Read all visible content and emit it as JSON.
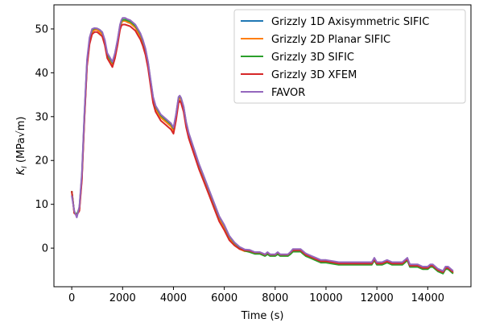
{
  "chart_data": {
    "type": "line",
    "xlabel": "Time (s)",
    "ylabel": "K_I (MPa√m)",
    "xlim": [
      -700,
      15700
    ],
    "ylim": [
      -8.8,
      55.5
    ],
    "xticks": [
      0,
      2000,
      4000,
      6000,
      8000,
      10000,
      12000,
      14000
    ],
    "yticks": [
      0,
      10,
      20,
      30,
      40,
      50
    ],
    "grid": false,
    "legend_position": "top-right",
    "series": [
      {
        "name": "Grizzly 1D Axisymmetric SIFIC",
        "color": "#1f77b4",
        "x": [
          0,
          100,
          200,
          300,
          400,
          500,
          600,
          700,
          800,
          900,
          1000,
          1100,
          1200,
          1300,
          1400,
          1500,
          1600,
          1700,
          1800,
          1900,
          1950,
          2000,
          2100,
          2200,
          2300,
          2400,
          2500,
          2600,
          2700,
          2800,
          2900,
          3000,
          3100,
          3200,
          3300,
          3400,
          3500,
          3600,
          3700,
          3800,
          3900,
          4000,
          4100,
          4200,
          4250,
          4300,
          4350,
          4400,
          4500,
          4600,
          4800,
          5000,
          5200,
          5400,
          5600,
          5800,
          6000,
          6200,
          6400,
          6600,
          6800,
          7000,
          7200,
          7400,
          7600,
          7700,
          7800,
          7900,
          8000,
          8100,
          8200,
          8300,
          8400,
          8500,
          8600,
          8700,
          8800,
          8900,
          9000,
          9100,
          9200,
          9400,
          9600,
          9800,
          10000,
          10500,
          11000,
          11500,
          11800,
          11900,
          12000,
          12200,
          12400,
          12600,
          12800,
          13000,
          13100,
          13200,
          13300,
          13400,
          13600,
          13800,
          14000,
          14100,
          14200,
          14400,
          14600,
          14700,
          14800,
          15000
        ],
        "y": [
          13,
          8,
          7.5,
          9,
          16,
          30,
          42,
          47,
          49.5,
          50,
          50,
          49.5,
          49,
          47,
          44,
          43,
          42,
          44,
          47,
          50.5,
          51.5,
          52,
          52,
          51.7,
          51.5,
          51,
          50.5,
          49.5,
          48.5,
          47,
          45,
          42,
          38,
          34,
          32,
          31,
          30,
          29.5,
          29,
          28.5,
          28,
          27,
          30,
          34,
          34.5,
          34,
          33,
          32,
          28.5,
          26,
          22.5,
          19,
          16,
          13,
          10,
          7,
          5,
          2.5,
          1,
          0,
          -0.5,
          -0.5,
          -1,
          -1,
          -1.5,
          -1,
          -1.5,
          -1.5,
          -1.5,
          -1,
          -1.5,
          -1.5,
          -1.5,
          -1.5,
          -1,
          -0.5,
          -0.5,
          -0.5,
          -0.5,
          -1,
          -1.5,
          -2,
          -2.5,
          -3,
          -3,
          -3.5,
          -3.5,
          -3.5,
          -3.5,
          -2.5,
          -3.5,
          -3.5,
          -3,
          -3.5,
          -3.5,
          -3.5,
          -3,
          -2.5,
          -4,
          -4,
          -4,
          -4.5,
          -4.5,
          -4,
          -4,
          -5,
          -5.5,
          -4.5,
          -4.5,
          -5.5
        ]
      },
      {
        "name": "Grizzly 2D Planar SIFIC",
        "color": "#ff7f0e",
        "x": [
          0,
          100,
          200,
          300,
          400,
          500,
          600,
          700,
          800,
          900,
          1000,
          1100,
          1200,
          1300,
          1400,
          1500,
          1600,
          1700,
          1800,
          1900,
          1950,
          2000,
          2100,
          2200,
          2300,
          2400,
          2500,
          2600,
          2700,
          2800,
          2900,
          3000,
          3100,
          3200,
          3300,
          3400,
          3500,
          3600,
          3700,
          3800,
          3900,
          4000,
          4100,
          4200,
          4250,
          4300,
          4350,
          4400,
          4500,
          4600,
          4800,
          5000,
          5200,
          5400,
          5600,
          5800,
          6000,
          6200,
          6400,
          6600,
          6800,
          7000,
          7200,
          7400,
          7600,
          7700,
          7800,
          7900,
          8000,
          8100,
          8200,
          8300,
          8400,
          8500,
          8600,
          8700,
          8800,
          8900,
          9000,
          9100,
          9200,
          9400,
          9600,
          9800,
          10000,
          10500,
          11000,
          11500,
          11800,
          11900,
          12000,
          12200,
          12400,
          12600,
          12800,
          13000,
          13100,
          13200,
          13300,
          13400,
          13600,
          13800,
          14000,
          14100,
          14200,
          14400,
          14600,
          14700,
          14800,
          15000
        ],
        "y": [
          13,
          8,
          7.5,
          9,
          16,
          30,
          42,
          47,
          49.3,
          49.8,
          49.8,
          49.3,
          48.8,
          46.8,
          43.8,
          42.8,
          41.8,
          43.8,
          46.8,
          50.3,
          51.3,
          51.8,
          51.8,
          51.5,
          51.3,
          50.8,
          50.3,
          49.3,
          48.3,
          46.8,
          44.8,
          41.8,
          37.8,
          33.8,
          31.8,
          30.8,
          29.8,
          29.3,
          28.8,
          28.3,
          27.8,
          26.8,
          29.8,
          33.8,
          34.3,
          33.8,
          32.8,
          31.8,
          28.3,
          25.8,
          22.3,
          18.8,
          15.8,
          12.8,
          9.8,
          6.8,
          4.8,
          2.3,
          0.8,
          -0.2,
          -0.7,
          -0.7,
          -1.2,
          -1.2,
          -1.7,
          -1.2,
          -1.7,
          -1.7,
          -1.7,
          -1.2,
          -1.7,
          -1.7,
          -1.7,
          -1.7,
          -1.2,
          -0.7,
          -0.7,
          -0.7,
          -0.7,
          -1.2,
          -1.7,
          -2.2,
          -2.7,
          -3.2,
          -3.2,
          -3.7,
          -3.7,
          -3.7,
          -3.7,
          -2.7,
          -3.7,
          -3.7,
          -3.2,
          -3.7,
          -3.7,
          -3.7,
          -3.2,
          -2.7,
          -4.2,
          -4.2,
          -4.2,
          -4.7,
          -4.7,
          -4.2,
          -4.2,
          -5.2,
          -5.7,
          -4.7,
          -4.7,
          -5.7
        ]
      },
      {
        "name": "Grizzly 3D SIFIC",
        "color": "#2ca02c",
        "x": [
          0,
          100,
          200,
          300,
          400,
          500,
          600,
          700,
          800,
          900,
          1000,
          1100,
          1200,
          1300,
          1400,
          1500,
          1600,
          1700,
          1800,
          1900,
          1950,
          2000,
          2100,
          2200,
          2300,
          2400,
          2500,
          2600,
          2700,
          2800,
          2900,
          3000,
          3100,
          3200,
          3300,
          3400,
          3500,
          3600,
          3700,
          3800,
          3900,
          4000,
          4100,
          4200,
          4250,
          4300,
          4350,
          4400,
          4500,
          4600,
          4800,
          5000,
          5200,
          5400,
          5600,
          5800,
          6000,
          6200,
          6400,
          6600,
          6800,
          7000,
          7200,
          7400,
          7600,
          7700,
          7800,
          7900,
          8000,
          8100,
          8200,
          8300,
          8400,
          8500,
          8600,
          8700,
          8800,
          8900,
          9000,
          9100,
          9200,
          9400,
          9600,
          9800,
          10000,
          10500,
          11000,
          11500,
          11800,
          11900,
          12000,
          12200,
          12400,
          12600,
          12800,
          13000,
          13100,
          13200,
          13300,
          13400,
          13600,
          13800,
          14000,
          14100,
          14200,
          14400,
          14600,
          14700,
          14800,
          15000
        ],
        "y": [
          13,
          8.2,
          7.7,
          9.2,
          16.5,
          30.5,
          42.5,
          47.5,
          49.8,
          50.1,
          50.1,
          49.8,
          49.2,
          47.2,
          44.2,
          43.2,
          42.3,
          44.3,
          47.3,
          50.8,
          51.7,
          52.1,
          52.1,
          51.9,
          51.7,
          51.2,
          50.7,
          49.8,
          48.8,
          47.3,
          45.3,
          42.3,
          38.3,
          34.3,
          32.3,
          31.3,
          30.3,
          29.8,
          29.3,
          28.8,
          28.3,
          27.3,
          30.3,
          34.3,
          34.7,
          34.2,
          33.2,
          32.2,
          28.7,
          26.2,
          22.7,
          19.2,
          16.2,
          13.2,
          10.2,
          7.2,
          5.2,
          2.7,
          1.2,
          0.2,
          -0.6,
          -0.9,
          -1.3,
          -1.3,
          -1.8,
          -1.4,
          -1.8,
          -1.8,
          -1.8,
          -1.4,
          -1.8,
          -1.8,
          -1.8,
          -1.8,
          -1.4,
          -0.8,
          -0.8,
          -0.8,
          -0.8,
          -1.3,
          -1.8,
          -2.3,
          -2.8,
          -3.3,
          -3.3,
          -3.8,
          -3.8,
          -3.8,
          -3.8,
          -2.8,
          -3.8,
          -3.8,
          -3.3,
          -3.8,
          -3.8,
          -3.8,
          -3.3,
          -2.8,
          -4.3,
          -4.3,
          -4.3,
          -4.8,
          -4.8,
          -4.3,
          -4.3,
          -5.3,
          -5.8,
          -4.8,
          -4.8,
          -5.8
        ]
      },
      {
        "name": "Grizzly 3D XFEM",
        "color": "#d62728",
        "x": [
          0,
          100,
          200,
          300,
          400,
          500,
          600,
          700,
          800,
          900,
          1000,
          1100,
          1200,
          1300,
          1400,
          1500,
          1600,
          1700,
          1800,
          1900,
          1950,
          2000,
          2100,
          2200,
          2300,
          2400,
          2500,
          2600,
          2700,
          2800,
          2900,
          3000,
          3100,
          3200,
          3300,
          3400,
          3500,
          3600,
          3700,
          3800,
          3900,
          4000,
          4100,
          4200,
          4250,
          4300,
          4350,
          4400,
          4500,
          4600,
          4800,
          5000,
          5200,
          5400,
          5600,
          5800,
          6000,
          6200,
          6400,
          6600,
          6800,
          7000,
          7200,
          7400,
          7600,
          7700,
          7800,
          7900,
          8000,
          8100,
          8200,
          8300,
          8400,
          8500,
          8600,
          8700,
          8800,
          8900,
          9000,
          9100,
          9200,
          9400,
          9600,
          9800,
          10000,
          10500,
          11000,
          11500,
          11800,
          11900,
          12000,
          12200,
          12400,
          12600,
          12800,
          13000,
          13100,
          13200,
          13300,
          13400,
          13600,
          13800,
          14000,
          14100,
          14200,
          14400,
          14600,
          14700,
          14800,
          15000
        ],
        "y": [
          13,
          8,
          7.5,
          8.5,
          15.5,
          29.5,
          41.5,
          46.5,
          48.8,
          49.3,
          49.3,
          48.8,
          48.3,
          46.3,
          43.3,
          42.3,
          41.3,
          43.3,
          46.3,
          49.8,
          50.7,
          51,
          51,
          50.8,
          50.6,
          50.1,
          49.6,
          48.6,
          47.6,
          46.1,
          44.1,
          41.1,
          37.1,
          33.1,
          31.1,
          30.1,
          29.1,
          28.6,
          28.1,
          27.6,
          27.1,
          26.1,
          29.1,
          33.1,
          33.6,
          33.1,
          32.1,
          31.1,
          27.6,
          25.1,
          21.6,
          18.1,
          15.1,
          12.1,
          9.1,
          6.1,
          4.1,
          1.8,
          0.6,
          -0.2,
          -0.5,
          -0.6,
          -1,
          -1,
          -1.5,
          -1,
          -1.5,
          -1.5,
          -1.5,
          -1,
          -1.5,
          -1.5,
          -1.5,
          -1.5,
          -1,
          -0.5,
          -0.5,
          -0.5,
          -0.5,
          -1,
          -1.5,
          -2,
          -2.5,
          -3,
          -3,
          -3.5,
          -3.5,
          -3.5,
          -3.5,
          -2.5,
          -3.5,
          -3.5,
          -3,
          -3.5,
          -3.5,
          -3.5,
          -3,
          -2.5,
          -4,
          -4,
          -4,
          -4.5,
          -4.5,
          -4,
          -4,
          -5,
          -5.5,
          -4.5,
          -4.5,
          -5.5
        ]
      },
      {
        "name": "FAVOR",
        "color": "#9467bd",
        "x": [
          0,
          100,
          200,
          300,
          400,
          500,
          600,
          700,
          800,
          900,
          1000,
          1100,
          1200,
          1300,
          1400,
          1500,
          1600,
          1700,
          1800,
          1900,
          1950,
          2000,
          2100,
          2200,
          2300,
          2400,
          2500,
          2600,
          2700,
          2800,
          2900,
          3000,
          3100,
          3200,
          3300,
          3400,
          3500,
          3600,
          3700,
          3800,
          3900,
          4000,
          4100,
          4200,
          4250,
          4300,
          4350,
          4400,
          4500,
          4600,
          4800,
          5000,
          5200,
          5400,
          5600,
          5800,
          6000,
          6200,
          6400,
          6600,
          6800,
          7000,
          7200,
          7400,
          7600,
          7700,
          7800,
          7900,
          8000,
          8100,
          8200,
          8300,
          8400,
          8500,
          8600,
          8700,
          8800,
          8900,
          9000,
          9100,
          9200,
          9400,
          9600,
          9800,
          10000,
          10500,
          11000,
          11500,
          11800,
          11900,
          12000,
          12200,
          12400,
          12600,
          12800,
          13000,
          13100,
          13200,
          13300,
          13400,
          13600,
          13800,
          14000,
          14100,
          14200,
          14400,
          14600,
          14700,
          14800,
          15000
        ],
        "y": [
          12,
          8.5,
          7,
          9.5,
          17,
          31,
          43,
          48,
          50,
          50.2,
          50.1,
          49.8,
          49.3,
          47.5,
          44.5,
          43.5,
          42.5,
          44.5,
          47.5,
          51,
          52,
          52.5,
          52.5,
          52.2,
          52,
          51.5,
          51,
          50,
          49,
          47.5,
          45.5,
          42.5,
          38.5,
          34.5,
          32.5,
          31.5,
          30.5,
          30,
          29.5,
          29,
          28.5,
          27.5,
          30.5,
          34.5,
          34.8,
          34.3,
          33.3,
          32.3,
          28.8,
          26.3,
          22.8,
          19.3,
          16.3,
          13.3,
          10.3,
          7.3,
          5.3,
          2.8,
          1.3,
          0.3,
          -0.3,
          -0.4,
          -0.9,
          -0.9,
          -1.4,
          -0.9,
          -1.4,
          -1.4,
          -1.4,
          -0.9,
          -1.4,
          -1.4,
          -1.4,
          -1.4,
          -0.9,
          -0.2,
          -0.2,
          -0.2,
          -0.2,
          -0.7,
          -1.2,
          -1.7,
          -2.2,
          -2.7,
          -2.7,
          -3.2,
          -3.2,
          -3.2,
          -3.2,
          -2.2,
          -3.2,
          -3.2,
          -2.7,
          -3.2,
          -3.2,
          -3.2,
          -2.7,
          -2.2,
          -3.7,
          -3.7,
          -3.7,
          -4.2,
          -4.2,
          -3.7,
          -3.7,
          -4.7,
          -5.2,
          -4.2,
          -4.2,
          -5.2
        ]
      }
    ]
  }
}
